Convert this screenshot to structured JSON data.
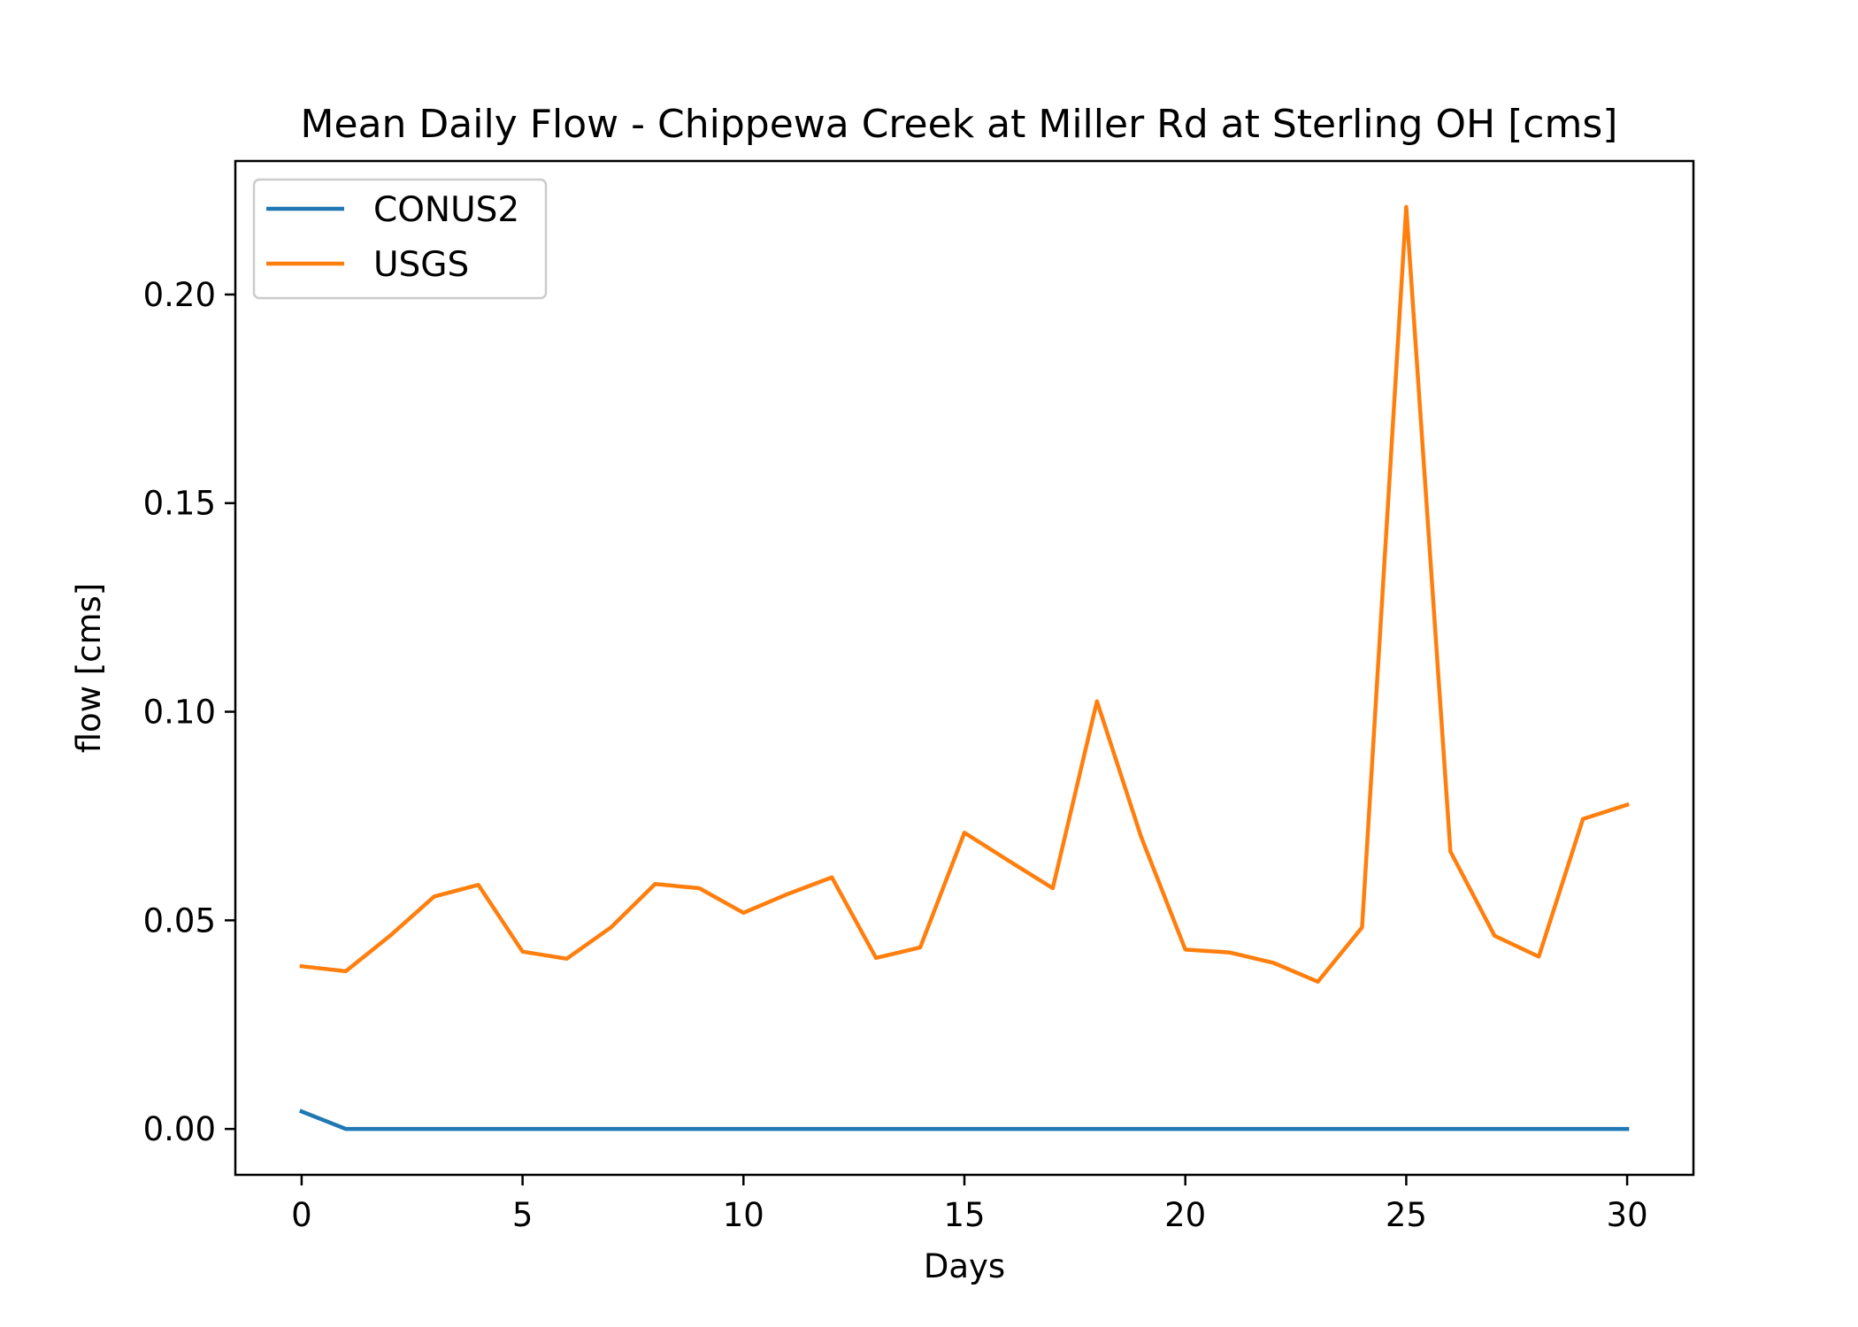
{
  "chart_data": {
    "type": "line",
    "title": "Mean Daily Flow - Chippewa Creek at Miller Rd at Sterling OH [cms]",
    "xlabel": "Days",
    "ylabel": "flow [cms]",
    "xlim": [
      -1.5,
      31.5
    ],
    "ylim": [
      -0.011,
      0.232
    ],
    "xticks": [
      0,
      5,
      10,
      15,
      20,
      25,
      30
    ],
    "xtick_labels": [
      "0",
      "5",
      "10",
      "15",
      "20",
      "25",
      "30"
    ],
    "yticks": [
      0.0,
      0.05,
      0.1,
      0.15,
      0.2
    ],
    "ytick_labels": [
      "0.00",
      "0.05",
      "0.10",
      "0.15",
      "0.20"
    ],
    "grid": false,
    "legend": "upper left",
    "x": [
      0,
      1,
      2,
      3,
      4,
      5,
      6,
      7,
      8,
      9,
      10,
      11,
      12,
      13,
      14,
      15,
      16,
      17,
      18,
      19,
      20,
      21,
      22,
      23,
      24,
      25,
      26,
      27,
      28,
      29,
      30
    ],
    "series": [
      {
        "name": "CONUS2",
        "color": "#1f77b4",
        "values": [
          0.0042,
          0,
          0,
          0,
          0,
          0,
          0,
          0,
          0,
          0,
          0,
          0,
          0,
          0,
          0,
          0,
          0,
          0,
          0,
          0,
          0,
          0,
          0,
          0,
          0,
          0,
          0,
          0,
          0,
          0,
          0
        ]
      },
      {
        "name": "USGS",
        "color": "#ff7f0e",
        "values": [
          0.039,
          0.0378,
          0.0463,
          0.0557,
          0.0585,
          0.0425,
          0.0408,
          0.0483,
          0.0587,
          0.0577,
          0.0518,
          0.0563,
          0.0603,
          0.041,
          0.0435,
          0.071,
          0.0643,
          0.0577,
          0.1025,
          0.07,
          0.043,
          0.0423,
          0.0398,
          0.0353,
          0.0483,
          0.221,
          0.0665,
          0.0463,
          0.0413,
          0.0743,
          0.0777
        ]
      }
    ]
  }
}
